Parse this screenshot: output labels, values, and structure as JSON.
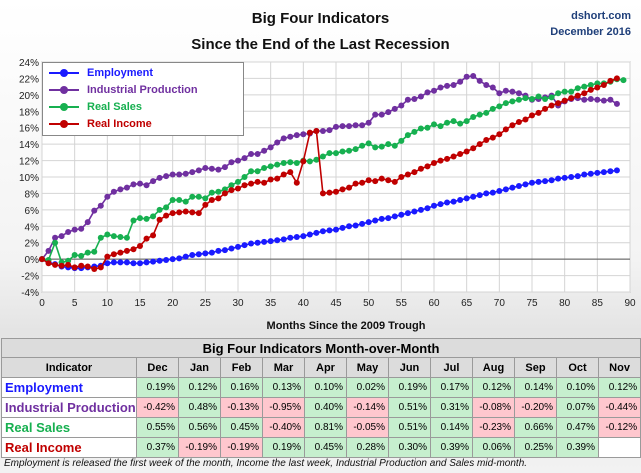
{
  "header": {
    "title_line1": "Big Four Indicators",
    "title_line2": "Since the End of the Last Recession",
    "site": "dshort.com",
    "date": "December 2016"
  },
  "colors": {
    "employment": "#1a1aff",
    "industrial_production": "#7030a0",
    "real_sales": "#17b050",
    "real_income": "#c00000",
    "positive_cell": "#c6efce",
    "negative_cell": "#ffc7ce"
  },
  "chart_data": {
    "type": "line",
    "title": "",
    "xlabel": "Months Since the 2009 Trough",
    "ylabel": "",
    "xlim": [
      0,
      90
    ],
    "ylim": [
      -4,
      24
    ],
    "x_ticks": [
      0,
      5,
      10,
      15,
      20,
      25,
      30,
      35,
      40,
      45,
      50,
      55,
      60,
      65,
      70,
      75,
      80,
      85,
      90
    ],
    "y_ticks": [
      "-4%",
      "-2%",
      "0%",
      "2%",
      "4%",
      "6%",
      "8%",
      "10%",
      "12%",
      "14%",
      "16%",
      "18%",
      "20%",
      "22%",
      "24%"
    ],
    "grid": true,
    "legend_position": "top-left",
    "series": [
      {
        "name": "Employment",
        "color": "#1a1aff",
        "values": [
          0.0,
          -0.4,
          -0.6,
          -0.9,
          -1.0,
          -1.1,
          -1.1,
          -1.0,
          -0.9,
          -0.8,
          -0.5,
          -0.4,
          -0.4,
          -0.4,
          -0.5,
          -0.5,
          -0.4,
          -0.3,
          -0.2,
          -0.1,
          -0.0,
          0.1,
          0.3,
          0.5,
          0.6,
          0.7,
          0.8,
          1.0,
          1.1,
          1.3,
          1.5,
          1.7,
          1.9,
          2.0,
          2.1,
          2.2,
          2.3,
          2.4,
          2.6,
          2.7,
          2.8,
          3.0,
          3.2,
          3.4,
          3.5,
          3.6,
          3.8,
          4.0,
          4.1,
          4.3,
          4.5,
          4.7,
          4.9,
          5.0,
          5.2,
          5.4,
          5.6,
          5.8,
          6.0,
          6.2,
          6.5,
          6.7,
          6.9,
          7.0,
          7.2,
          7.4,
          7.6,
          7.8,
          8.0,
          8.1,
          8.3,
          8.5,
          8.7,
          8.9,
          9.1,
          9.3,
          9.4,
          9.5,
          9.6,
          9.8,
          9.9,
          10.0,
          10.1,
          10.3,
          10.4,
          10.5,
          10.6,
          10.7,
          10.8
        ]
      },
      {
        "name": "Industrial Production",
        "color": "#7030a0",
        "values": [
          0.0,
          1.0,
          2.6,
          2.8,
          3.3,
          3.6,
          3.7,
          4.5,
          5.9,
          6.5,
          7.6,
          8.2,
          8.5,
          8.7,
          9.1,
          9.2,
          9.0,
          9.5,
          9.9,
          10.1,
          10.3,
          10.3,
          10.4,
          10.6,
          10.8,
          11.1,
          11.0,
          10.9,
          11.2,
          11.8,
          12.0,
          12.3,
          12.8,
          12.8,
          13.2,
          13.6,
          14.2,
          14.7,
          14.9,
          15.1,
          15.2,
          15.3,
          15.6,
          15.6,
          15.7,
          16.1,
          16.2,
          16.2,
          16.3,
          16.3,
          16.6,
          17.6,
          17.6,
          17.9,
          18.3,
          18.7,
          19.4,
          19.5,
          19.8,
          20.3,
          20.5,
          20.9,
          21.1,
          21.2,
          21.6,
          22.2,
          22.3,
          21.7,
          21.2,
          20.9,
          20.2,
          20.5,
          20.4,
          20.2,
          19.9,
          19.4,
          19.5,
          19.7,
          19.9,
          18.7,
          19.2,
          19.5,
          19.6,
          19.4,
          19.5,
          19.4,
          19.3,
          19.4,
          18.9
        ]
      },
      {
        "name": "Real Sales",
        "color": "#17b050",
        "values": [
          0.0,
          -0.1,
          2.0,
          -0.4,
          -0.2,
          0.5,
          0.4,
          0.8,
          0.9,
          2.6,
          3.0,
          2.8,
          2.7,
          2.6,
          4.7,
          5.0,
          4.9,
          5.2,
          6.0,
          6.3,
          7.2,
          7.2,
          7.0,
          7.6,
          7.6,
          7.4,
          8.1,
          8.2,
          8.5,
          9.0,
          9.4,
          10.0,
          10.7,
          10.7,
          11.1,
          11.3,
          11.5,
          11.7,
          11.8,
          11.7,
          12.0,
          11.9,
          12.1,
          12.5,
          12.9,
          12.9,
          13.1,
          13.2,
          13.4,
          13.8,
          14.1,
          13.6,
          13.7,
          14.0,
          13.8,
          14.4,
          15.1,
          15.5,
          15.9,
          16.0,
          16.4,
          16.2,
          16.6,
          16.8,
          16.5,
          16.8,
          17.3,
          17.6,
          17.8,
          18.3,
          18.6,
          19.0,
          19.2,
          19.4,
          19.6,
          19.5,
          19.8,
          19.5,
          19.7,
          20.2,
          20.4,
          20.4,
          20.8,
          21.0,
          21.2,
          21.4,
          21.4,
          21.6,
          21.9,
          21.8
        ]
      },
      {
        "name": "Real Income",
        "color": "#c00000",
        "values": [
          0.0,
          -0.5,
          -0.7,
          -0.8,
          -0.7,
          -1.0,
          -0.8,
          -0.9,
          -1.2,
          -1.0,
          0.3,
          0.6,
          0.8,
          1.0,
          1.2,
          1.6,
          2.5,
          2.9,
          4.8,
          5.3,
          5.6,
          5.7,
          5.8,
          5.7,
          5.6,
          6.6,
          7.2,
          7.4,
          8.0,
          8.4,
          8.6,
          9.0,
          9.2,
          9.4,
          9.3,
          9.7,
          9.8,
          10.3,
          10.6,
          9.3,
          11.9,
          15.4,
          15.6,
          8.0,
          8.1,
          8.2,
          8.5,
          8.7,
          9.2,
          9.3,
          9.6,
          9.5,
          9.8,
          9.6,
          9.4,
          10.0,
          10.3,
          10.6,
          11.0,
          11.3,
          11.7,
          12.0,
          12.2,
          12.5,
          12.8,
          13.1,
          13.5,
          14.0,
          14.5,
          14.8,
          15.2,
          15.8,
          16.3,
          16.7,
          17.0,
          17.5,
          17.8,
          18.3,
          18.7,
          19.0,
          19.3,
          19.6,
          19.9,
          20.2,
          20.6,
          20.9,
          21.2,
          21.7,
          22.0
        ]
      }
    ]
  },
  "table": {
    "title": "Big Four Indicators Month-over-Month",
    "header_label": "Indicator",
    "months": [
      "Dec",
      "Jan",
      "Feb",
      "Mar",
      "Apr",
      "May",
      "Jun",
      "Jul",
      "Aug",
      "Sep",
      "Oct",
      "Nov"
    ],
    "rows": [
      {
        "name": "Employment",
        "color": "#1a1aff",
        "values": [
          "0.19%",
          "0.12%",
          "0.16%",
          "0.13%",
          "0.10%",
          "0.02%",
          "0.19%",
          "0.17%",
          "0.12%",
          "0.14%",
          "0.10%",
          "0.12%"
        ]
      },
      {
        "name": "Industrial Production",
        "color": "#7030a0",
        "values": [
          "-0.42%",
          "0.48%",
          "-0.13%",
          "-0.95%",
          "0.40%",
          "-0.14%",
          "0.51%",
          "0.31%",
          "-0.08%",
          "-0.20%",
          "0.07%",
          "-0.44%"
        ]
      },
      {
        "name": "Real Sales",
        "color": "#17b050",
        "values": [
          "0.55%",
          "0.56%",
          "0.45%",
          "-0.40%",
          "0.81%",
          "-0.05%",
          "0.51%",
          "0.14%",
          "-0.23%",
          "0.66%",
          "0.47%",
          "-0.12%"
        ]
      },
      {
        "name": "Real Income",
        "color": "#c00000",
        "values": [
          "0.37%",
          "-0.19%",
          "-0.19%",
          "0.19%",
          "0.45%",
          "0.28%",
          "0.30%",
          "0.39%",
          "0.06%",
          "0.25%",
          "0.39%",
          ""
        ]
      }
    ]
  },
  "footnote": "Employment is released the first week of the month, Income the last week, Industrial Production and Sales mid-month."
}
